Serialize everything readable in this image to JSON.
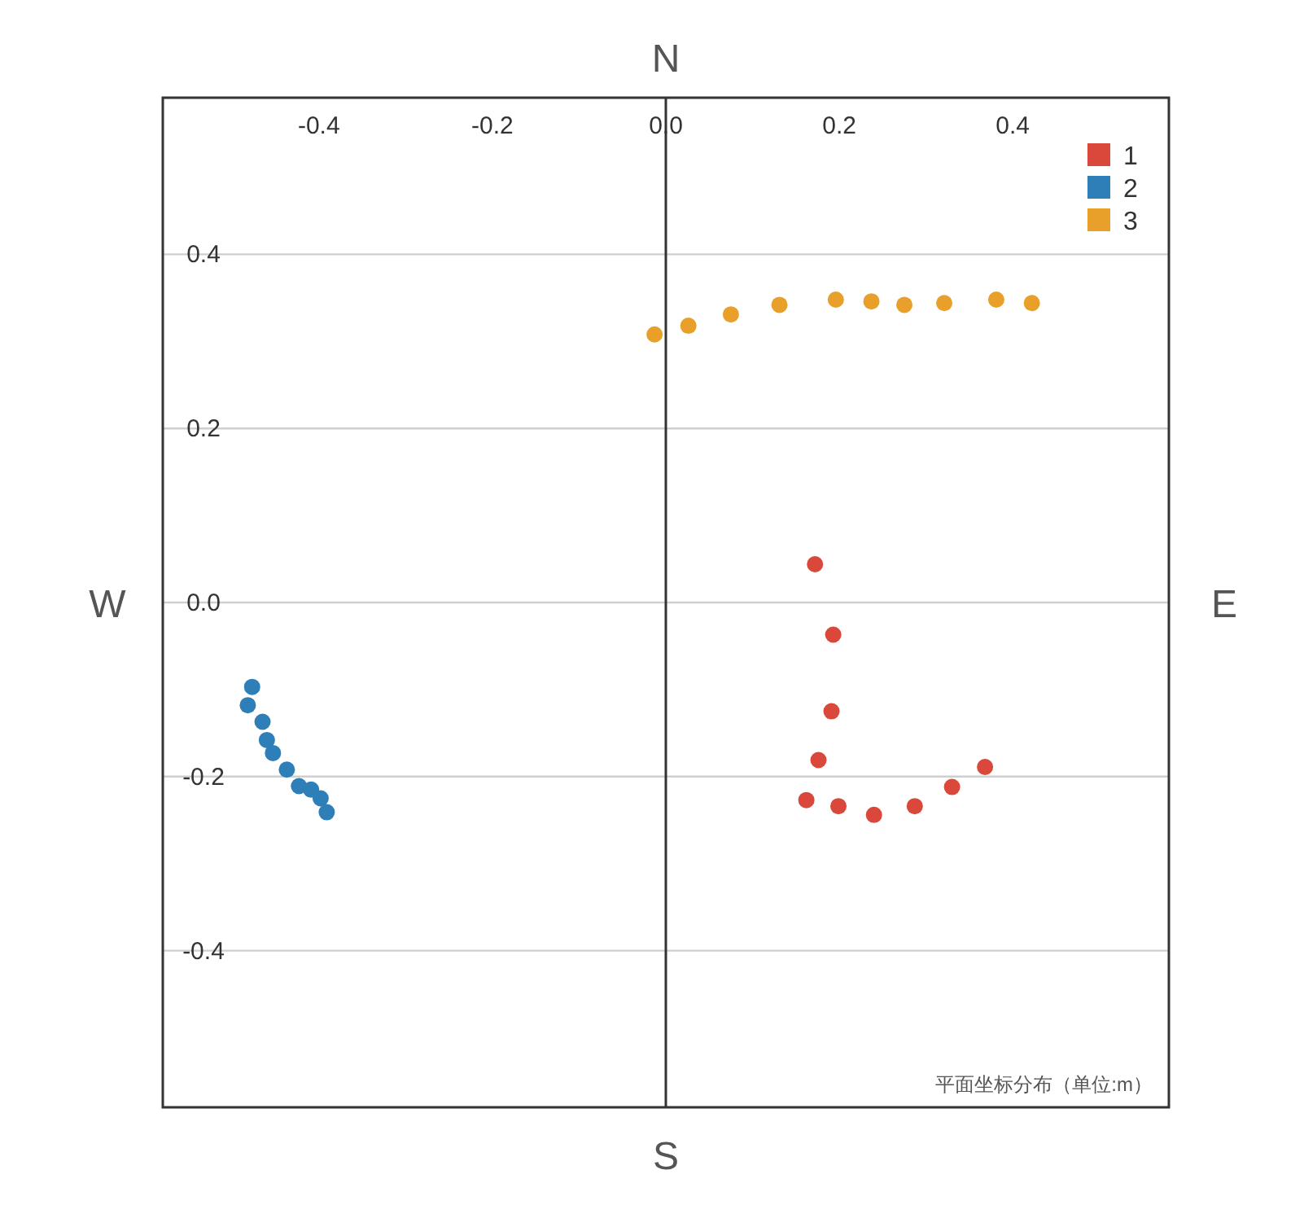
{
  "chart_data": {
    "type": "scatter",
    "xlim": [
      -0.58,
      0.58
    ],
    "ylim": [
      -0.58,
      0.58
    ],
    "xticks": [
      -0.4,
      -0.2,
      {
        "value": 0,
        "label": "0.0"
      },
      0.2,
      0.4
    ],
    "yticks": [
      0.4,
      0.2,
      {
        "value": 0,
        "label": "0.0"
      },
      -0.2,
      -0.4
    ],
    "grid": "y",
    "legend": "top right",
    "marker": "circle",
    "series": [
      {
        "name": "1",
        "color": "#d9483b",
        "x": [
          0.172,
          0.193,
          0.191,
          0.176,
          0.162,
          0.199,
          0.24,
          0.287,
          0.33,
          0.368
        ],
        "values": [
          0.044,
          -0.037,
          -0.125,
          -0.181,
          -0.227,
          -0.234,
          -0.244,
          -0.234,
          -0.212,
          -0.189
        ]
      },
      {
        "name": "2",
        "color": "#2e7fb8",
        "x": [
          -0.477,
          -0.482,
          -0.465,
          -0.46,
          -0.453,
          -0.437,
          -0.423,
          -0.409,
          -0.398,
          -0.391
        ],
        "values": [
          -0.097,
          -0.118,
          -0.137,
          -0.158,
          -0.173,
          -0.192,
          -0.211,
          -0.215,
          -0.225,
          -0.241
        ]
      },
      {
        "name": "3",
        "color": "#e8a02a",
        "x": [
          -0.013,
          0.026,
          0.075,
          0.131,
          0.196,
          0.237,
          0.275,
          0.321,
          0.381,
          0.422
        ],
        "values": [
          0.308,
          0.318,
          0.331,
          0.342,
          0.348,
          0.346,
          0.342,
          0.344,
          0.348,
          0.344
        ]
      }
    ],
    "annotations": [
      "N",
      "E",
      "S",
      "W",
      "平面坐标分布（单位:m）"
    ]
  }
}
